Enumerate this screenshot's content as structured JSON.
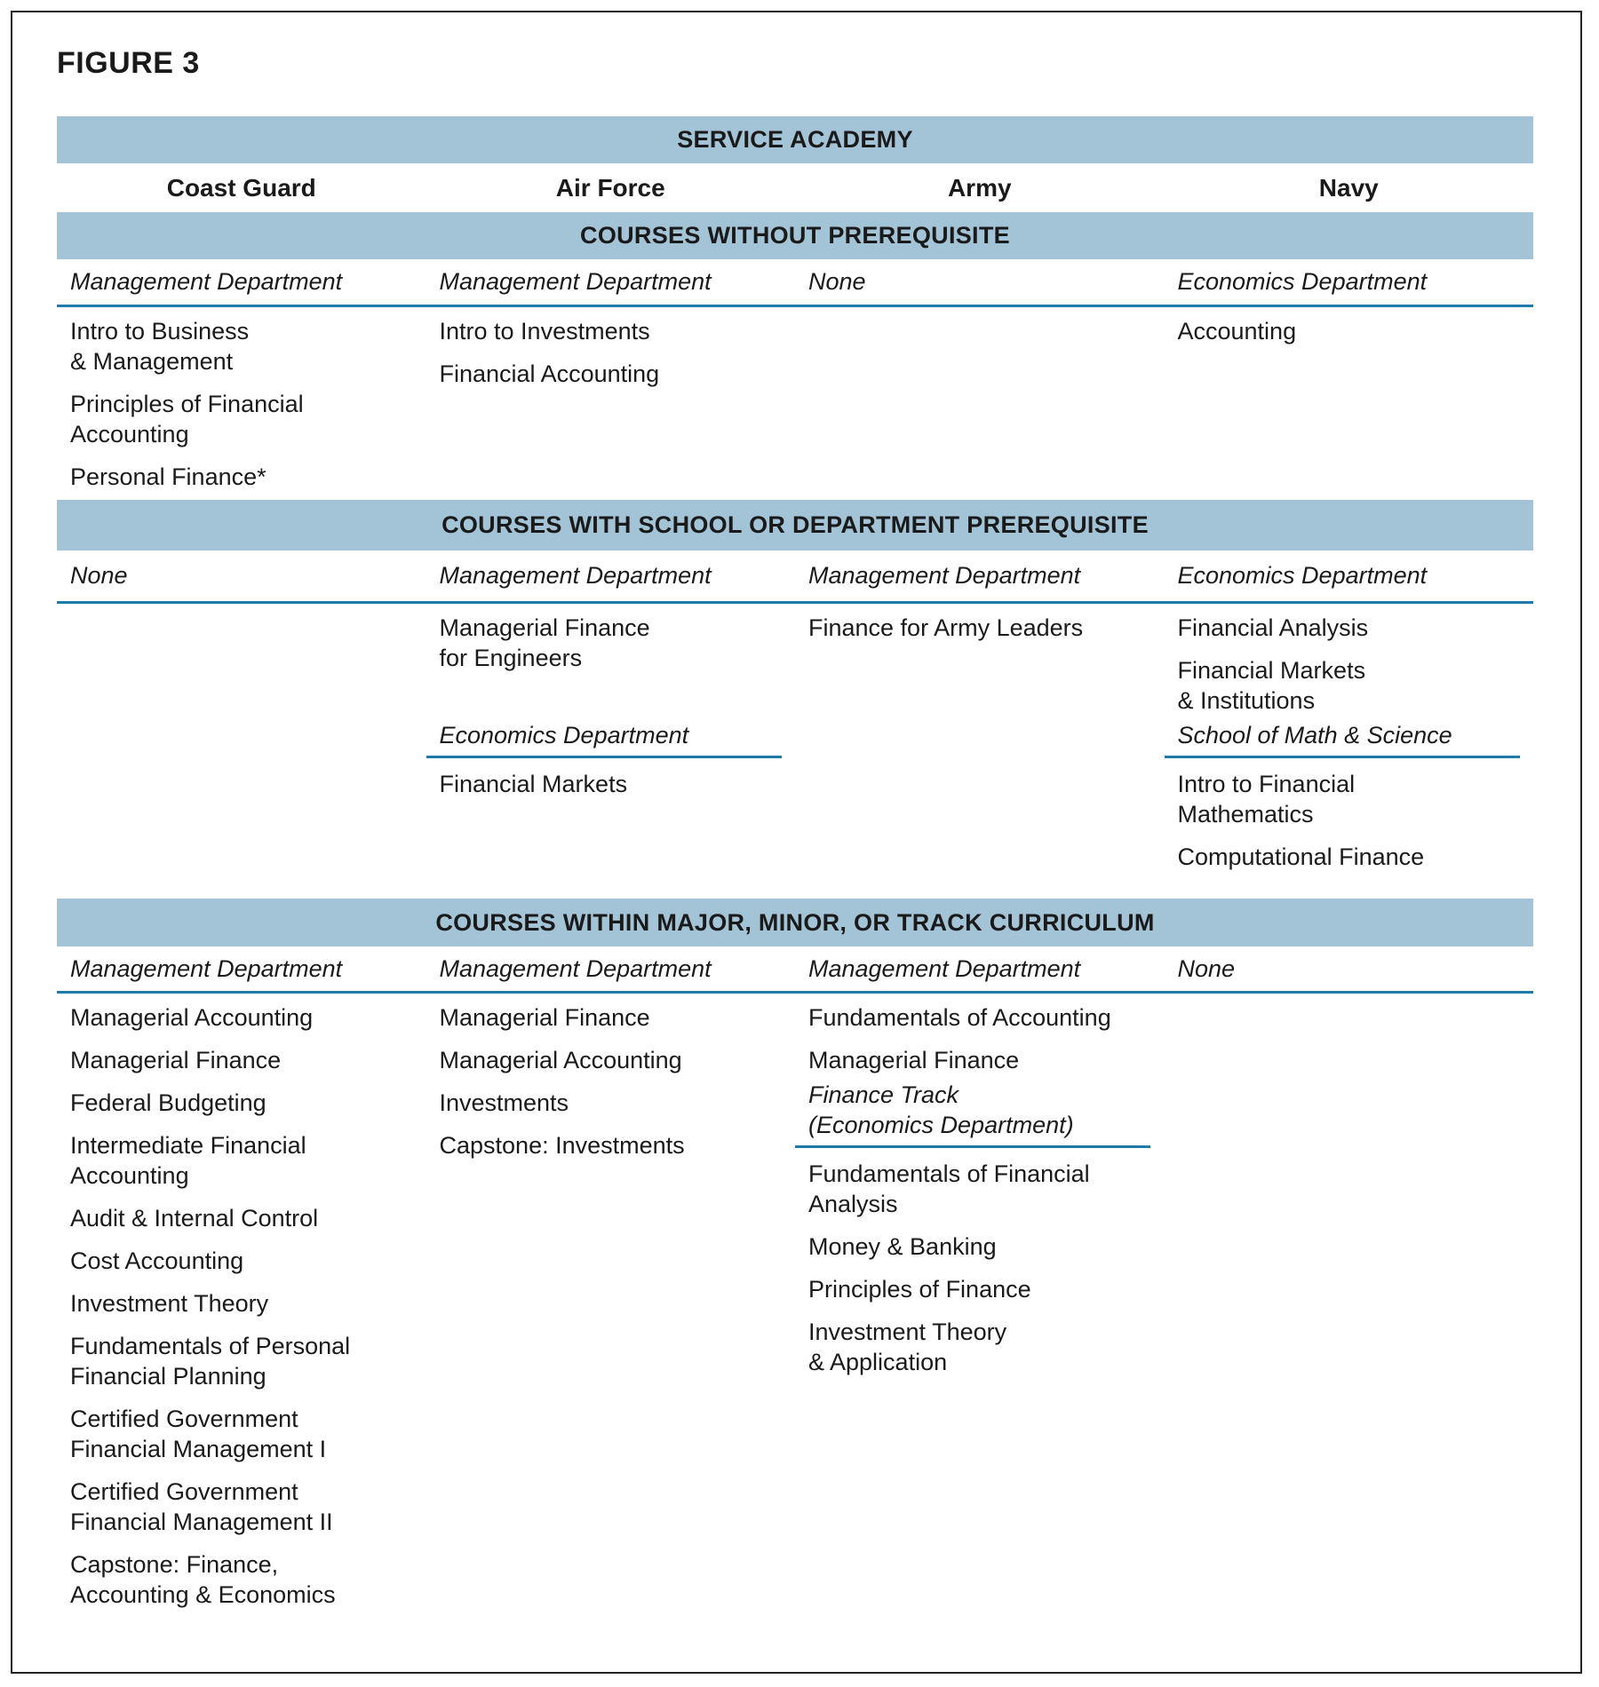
{
  "figure_title": "FIGURE 3",
  "header": "SERVICE ACADEMY",
  "academies": [
    "Coast Guard",
    "Air Force",
    "Army",
    "Navy"
  ],
  "colors": {
    "band": "#a3c3d6",
    "rule": "#1f7aa8"
  },
  "sections": [
    {
      "title": "COURSES WITHOUT PREREQUISITE",
      "columns": [
        {
          "dept": "Management Department",
          "items": [
            "Intro to Business\n& Management",
            "Principles of Financial\nAccounting",
            "Personal Finance*"
          ]
        },
        {
          "dept": "Management Department",
          "items": [
            "Intro to Investments",
            "Financial Accounting"
          ]
        },
        {
          "dept": "None",
          "items": []
        },
        {
          "dept": "Economics Department",
          "items": [
            "Accounting"
          ]
        }
      ]
    },
    {
      "title": "COURSES WITH SCHOOL OR DEPARTMENT PREREQUISITE",
      "columns": [
        {
          "dept": "None",
          "items": []
        },
        {
          "dept": "Management Department",
          "items": [
            "Managerial Finance\nfor Engineers"
          ],
          "sub": {
            "dept": "Economics Department",
            "items": [
              "Financial Markets"
            ]
          }
        },
        {
          "dept": "Management Department",
          "items": [
            "Finance for Army Leaders"
          ]
        },
        {
          "dept": "Economics Department",
          "items": [
            "Financial Analysis",
            "Financial Markets\n& Institutions"
          ],
          "sub": {
            "dept": "School of Math & Science",
            "items": [
              "Intro to Financial\nMathematics",
              "Computational Finance"
            ]
          }
        }
      ]
    },
    {
      "title": "COURSES WITHIN MAJOR, MINOR, OR TRACK CURRICULUM",
      "columns": [
        {
          "dept": "Management Department",
          "items": [
            "Managerial Accounting",
            "Managerial Finance",
            "Federal Budgeting",
            "Intermediate Financial\nAccounting",
            "Audit & Internal Control",
            "Cost Accounting",
            "Investment Theory",
            "Fundamentals of Personal\nFinancial Planning",
            "Certified Government\nFinancial Management I",
            "Certified Government\nFinancial Management II",
            "Capstone: Finance,\nAccounting & Economics"
          ]
        },
        {
          "dept": "Management Department",
          "items": [
            "Managerial Finance",
            "Managerial Accounting",
            "Investments",
            "Capstone: Investments"
          ]
        },
        {
          "dept": "Management Department",
          "items": [
            "Fundamentals of Accounting",
            "Managerial Finance"
          ],
          "sub": {
            "dept": "Finance Track\n(Economics Department)",
            "items": [
              "Fundamentals of Financial\nAnalysis",
              "Money & Banking",
              "Principles of Finance",
              "Investment Theory\n& Application"
            ]
          }
        },
        {
          "dept": "None",
          "items": []
        }
      ]
    }
  ]
}
